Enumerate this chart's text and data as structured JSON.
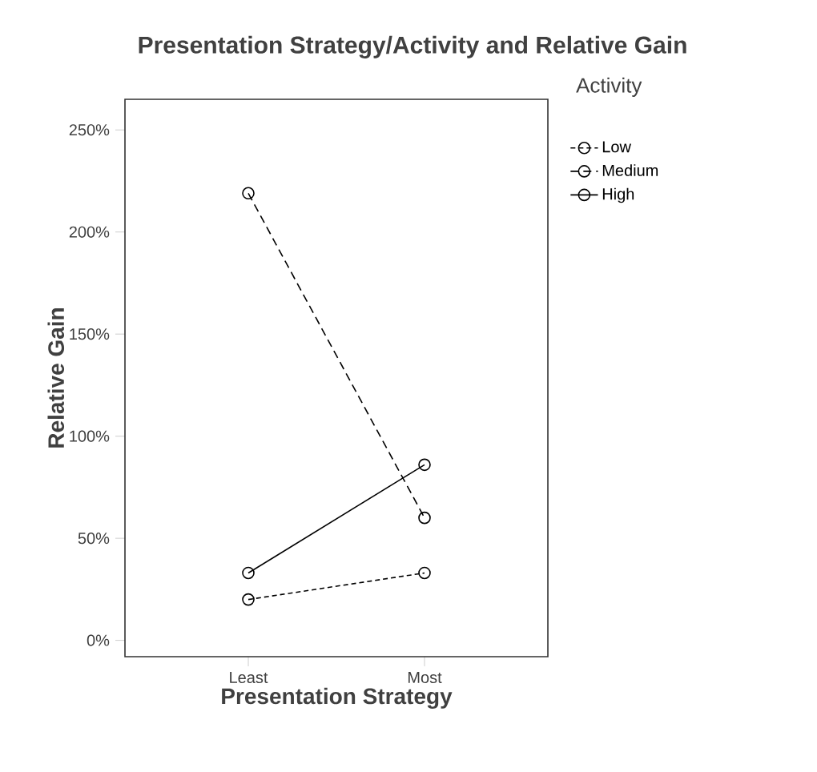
{
  "chart_data": {
    "type": "line",
    "title": "Presentation Strategy/Activity and Relative Gain",
    "xlabel": "Presentation Strategy",
    "ylabel": "Relative Gain",
    "legend_title": "Activity",
    "categories": [
      "Least",
      "Most"
    ],
    "series": [
      {
        "name": "Low",
        "color": "#000000",
        "line_style": "dotted",
        "values": [
          20,
          33
        ]
      },
      {
        "name": "Medium",
        "color": "#000000",
        "line_style": "dashed",
        "values": [
          219,
          60
        ]
      },
      {
        "name": "High",
        "color": "#000000",
        "line_style": "solid",
        "values": [
          33,
          86
        ]
      }
    ],
    "ylim": [
      -8,
      265
    ],
    "yticks": [
      {
        "value": 0,
        "label": "0%"
      },
      {
        "value": 50,
        "label": "50%"
      },
      {
        "value": 100,
        "label": "100%"
      },
      {
        "value": 150,
        "label": "150%"
      },
      {
        "value": 200,
        "label": "200%"
      },
      {
        "value": 250,
        "label": "250%"
      }
    ],
    "marker": "circle",
    "legend": "top right",
    "grid": false
  }
}
